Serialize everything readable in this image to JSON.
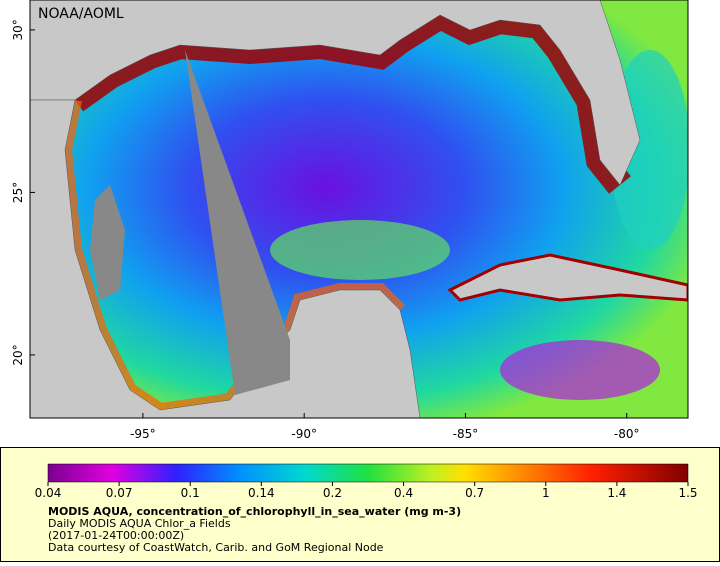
{
  "map": {
    "source": "NOAA/AOML",
    "xlim": [
      -98.5,
      -78.1
    ],
    "ylim": [
      18.06,
      30.92
    ],
    "lon_ticks": [
      {
        "value": -95,
        "label": "-95°"
      },
      {
        "value": -90,
        "label": "-90°"
      },
      {
        "value": -85,
        "label": "-85°"
      },
      {
        "value": -80,
        "label": "-80°"
      }
    ],
    "lat_ticks": [
      {
        "value": 20,
        "label": "20°"
      },
      {
        "value": 25,
        "label": "25°"
      },
      {
        "value": 30,
        "label": "30°"
      }
    ]
  },
  "legend": {
    "ticks": [
      0.04,
      0.07,
      0.1,
      0.14,
      0.2,
      0.4,
      0.7,
      1,
      1.4,
      1.5
    ],
    "title": "MODIS AQUA, concentration_of_chlorophyll_in_sea_water (mg m-3)",
    "product": "Daily MODIS AQUA Chlor_a Fields",
    "time": "(2017-01-24T00:00:00Z)",
    "credit": "Data courtesy of CoastWatch, Carib. and GoM Regional Node"
  }
}
